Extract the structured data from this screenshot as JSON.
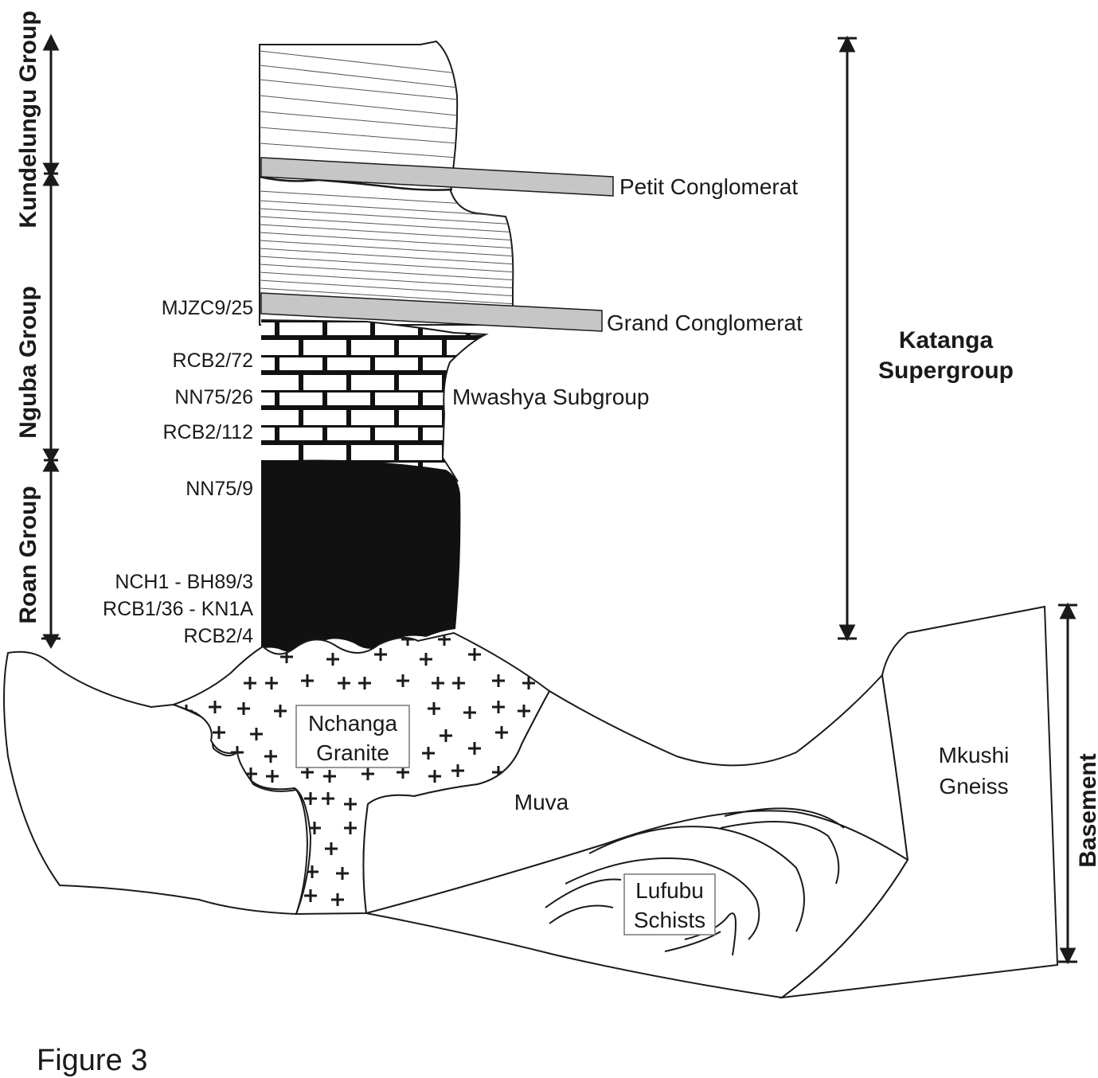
{
  "colors": {
    "line": "#1a1a1a",
    "conglomerate": "#c6c6c6",
    "black_unit": "#111111",
    "background": "#ffffff"
  },
  "groups": {
    "kundelungu": "Kundelungu Group",
    "nguba": "Nguba Group",
    "roan": "Roan Group"
  },
  "supergroup": {
    "line1": "Katanga",
    "line2": "Supergroup"
  },
  "basement": "Basement",
  "units": {
    "petit": "Petit Conglomerat",
    "grand": "Grand Conglomerat",
    "mwashya": "Mwashya Subgroup",
    "nchanga_1": "Nchanga",
    "nchanga_2": "Granite",
    "muva": "Muva",
    "mkushi_1": "Mkushi",
    "mkushi_2": "Gneiss",
    "lufubu_1": "Lufubu",
    "lufubu_2": "Schists"
  },
  "samples": [
    "MJZC9/25",
    "RCB2/72",
    "NN75/26",
    "RCB2/112",
    "NN75/9",
    "NCH1 - BH89/3",
    "RCB1/36 - KN1A",
    "RCB2/4"
  ],
  "figure_caption": "Figure 3"
}
